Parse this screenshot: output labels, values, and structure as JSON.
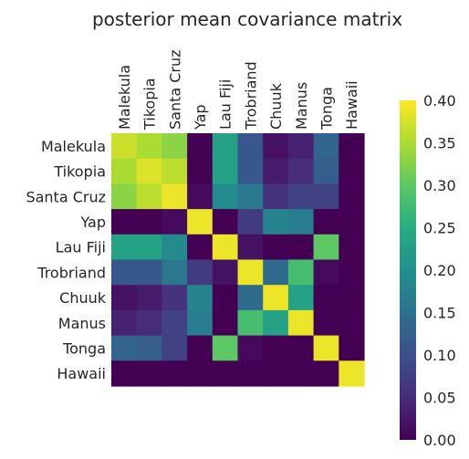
{
  "chart_data": {
    "type": "heatmap",
    "title": "posterior mean covariance matrix",
    "x_labels": [
      "Malekula",
      "Tikopia",
      "Santa Cruz",
      "Yap",
      "Lau Fiji",
      "Trobriand",
      "Chuuk",
      "Manus",
      "Tonga",
      "Hawaii"
    ],
    "y_labels": [
      "Malekula",
      "Tikopia",
      "Santa Cruz",
      "Yap",
      "Lau Fiji",
      "Trobriand",
      "Chuuk",
      "Manus",
      "Tonga",
      "Hawaii"
    ],
    "values": [
      [
        0.37,
        0.35,
        0.33,
        0.0,
        0.23,
        0.11,
        0.02,
        0.04,
        0.13,
        0.0
      ],
      [
        0.35,
        0.38,
        0.36,
        0.0,
        0.23,
        0.11,
        0.03,
        0.05,
        0.12,
        0.0
      ],
      [
        0.33,
        0.36,
        0.39,
        0.01,
        0.19,
        0.16,
        0.06,
        0.08,
        0.08,
        0.0
      ],
      [
        0.0,
        0.0,
        0.01,
        0.39,
        0.0,
        0.07,
        0.18,
        0.17,
        0.0,
        0.0
      ],
      [
        0.23,
        0.23,
        0.19,
        0.0,
        0.39,
        0.02,
        0.0,
        0.0,
        0.3,
        0.0
      ],
      [
        0.11,
        0.11,
        0.16,
        0.07,
        0.02,
        0.39,
        0.14,
        0.28,
        0.01,
        0.0
      ],
      [
        0.02,
        0.03,
        0.06,
        0.18,
        0.0,
        0.14,
        0.39,
        0.23,
        0.0,
        0.0
      ],
      [
        0.04,
        0.05,
        0.08,
        0.17,
        0.0,
        0.28,
        0.23,
        0.39,
        0.0,
        0.0
      ],
      [
        0.13,
        0.12,
        0.08,
        0.0,
        0.3,
        0.01,
        0.0,
        0.0,
        0.39,
        0.0
      ],
      [
        0.0,
        0.0,
        0.0,
        0.0,
        0.0,
        0.0,
        0.0,
        0.0,
        0.0,
        0.39
      ]
    ],
    "colormap": "viridis",
    "vmin": 0.0,
    "vmax": 0.4,
    "colorbar_ticks": [
      "0.00",
      "0.05",
      "0.10",
      "0.15",
      "0.20",
      "0.25",
      "0.30",
      "0.35",
      "0.40"
    ],
    "colorbar_placement": "right",
    "grid": false
  }
}
